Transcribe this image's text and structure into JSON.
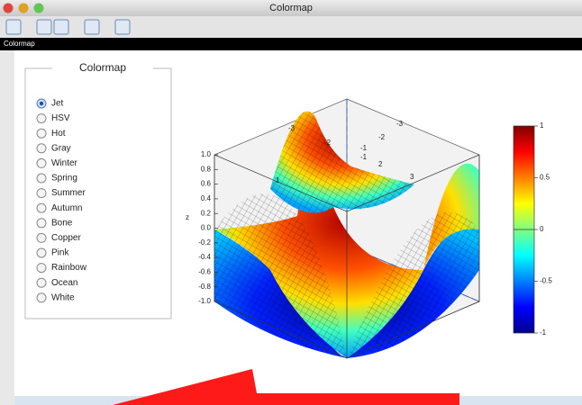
{
  "window": {
    "title": "Colormap"
  },
  "header": {
    "title": "Colormap"
  },
  "panel": {
    "title": "Colormap",
    "options": [
      "Jet",
      "HSV",
      "Hot",
      "Gray",
      "Winter",
      "Spring",
      "Summer",
      "Autumn",
      "Bone",
      "Copper",
      "Pink",
      "Rainbow",
      "Ocean",
      "White"
    ],
    "selected": 0
  },
  "plot": {
    "z_label": "z",
    "z_ticks": [
      "1.0",
      "0.8",
      "0.6",
      "0.4",
      "0.2",
      "0.0",
      "-0.2",
      "-0.4",
      "-0.6",
      "-0.8",
      "-1.0"
    ],
    "x_ticks": [
      "-3",
      "-2",
      "-1"
    ],
    "y_ticks": [
      "-3",
      "-2",
      "-1",
      "1",
      "2",
      "3"
    ],
    "colorbar_ticks": [
      "1",
      "0.5",
      "0",
      "-0.5",
      "-1"
    ]
  }
}
